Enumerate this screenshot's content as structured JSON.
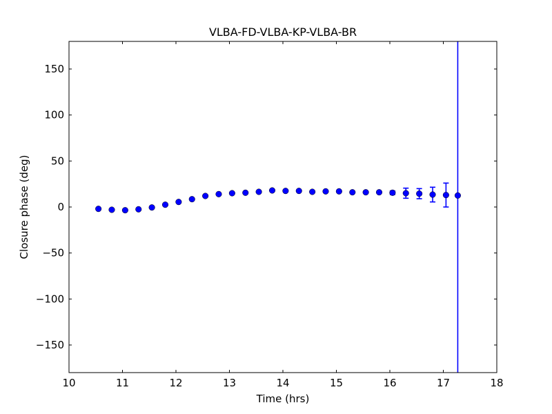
{
  "figure": {
    "background_color": "#ffffff",
    "frame_color": "#000000"
  },
  "chart_data": {
    "type": "scatter",
    "title": "VLBA-FD-VLBA-KP-VLBA-BR",
    "xlabel": "Time (hrs)",
    "ylabel": "Closure phase (deg)",
    "xlim": [
      10,
      18
    ],
    "ylim": [
      -180,
      180
    ],
    "xticks": [
      10,
      11,
      12,
      13,
      14,
      15,
      16,
      17,
      18
    ],
    "yticks": [
      -150,
      -100,
      -50,
      0,
      50,
      100,
      150
    ],
    "grid": false,
    "legend": "none",
    "marker": "filled-circle",
    "marker_color": "#0000ff",
    "marker_edge_color": "#000000",
    "errorbar_color": "#0000ff",
    "series": [
      {
        "name": "closure-phase",
        "x": [
          10.55,
          10.8,
          11.05,
          11.3,
          11.55,
          11.8,
          12.05,
          12.3,
          12.55,
          12.8,
          13.05,
          13.3,
          13.55,
          13.8,
          14.05,
          14.3,
          14.55,
          14.8,
          15.05,
          15.3,
          15.55,
          15.8,
          16.05,
          16.3,
          16.55,
          16.8,
          17.05,
          17.27
        ],
        "y": [
          -2,
          -3,
          -3.5,
          -2.5,
          -0.5,
          2.5,
          5.5,
          8.5,
          12,
          14,
          15,
          15.5,
          16.5,
          18,
          17.5,
          17.5,
          16.5,
          17,
          17,
          16,
          16,
          16,
          15.5,
          15,
          14.5,
          13.5,
          13,
          12.5
        ],
        "yerr": [
          0,
          0,
          0,
          0,
          0,
          0,
          0,
          0,
          0,
          0,
          0,
          0,
          0,
          0,
          0,
          0,
          0,
          0,
          0,
          0,
          0,
          0,
          2,
          5.5,
          5.5,
          8,
          13,
          200
        ]
      }
    ]
  }
}
